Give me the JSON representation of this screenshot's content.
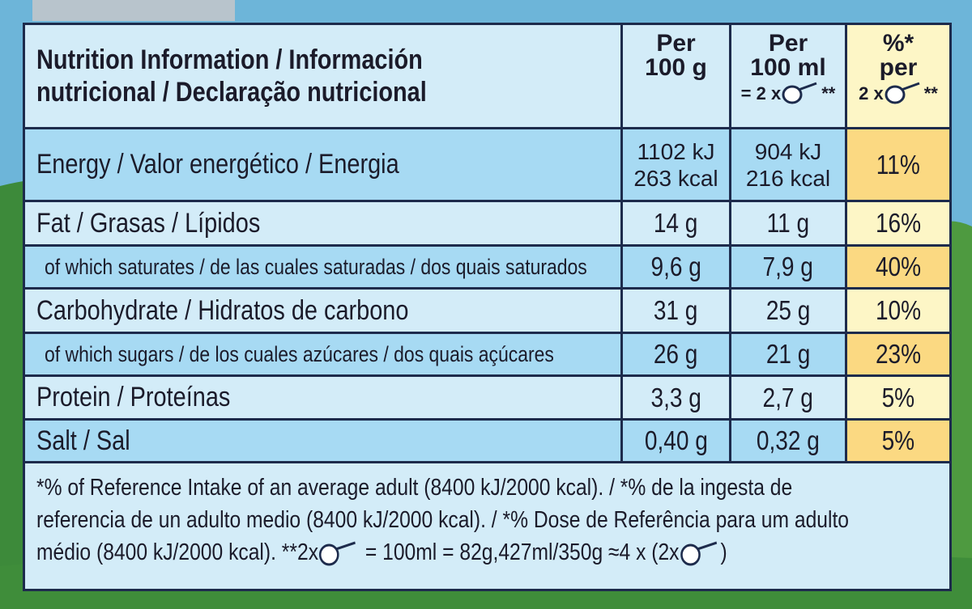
{
  "header": {
    "title_lines": [
      "Nutrition Information / Información",
      "nutricional / Declaração nutricional"
    ],
    "col1": [
      "Per",
      "100 g"
    ],
    "col2": [
      "Per",
      "100 ml",
      "= 2 x",
      "**"
    ],
    "col3": [
      "%*",
      "per",
      "2 x",
      "**"
    ]
  },
  "table": {
    "rows": [
      [
        "Energy / Valor energético / Energia",
        [
          "1102 kJ",
          "263 kcal"
        ],
        [
          "904 kJ",
          "216 kcal"
        ],
        "11%"
      ],
      [
        "Fat / Grasas / Lípidos",
        "14 g",
        "11 g",
        "16%"
      ],
      [
        "of which saturates / de las cuales saturadas / dos quais saturados",
        "9,6 g",
        "7,9 g",
        "40%"
      ],
      [
        "Carbohydrate / Hidratos de carbono",
        "31 g",
        "25 g",
        "10%"
      ],
      [
        "of which sugars / de los cuales azúcares / dos quais açúcares",
        "26 g",
        "21 g",
        "23%"
      ],
      [
        "Protein / Proteínas",
        "3,3 g",
        "2,7 g",
        "5%"
      ],
      [
        "Salt / Sal",
        "0,40 g",
        "0,32 g",
        "5%"
      ]
    ]
  },
  "footer": {
    "lines": [
      "*% of Reference Intake of an average adult (8400 kJ/2000 kcal). / *% de la ingesta de",
      "referencia de un adulto medio (8400 kJ/2000 kcal). / *% Dose de Referência para um adulto",
      "médio (8400 kJ/2000 kcal).  **2x"
    ],
    "after_scoop": "= 100ml = 82g,427ml/350g ≈4 x (2x",
    "end": ")"
  }
}
